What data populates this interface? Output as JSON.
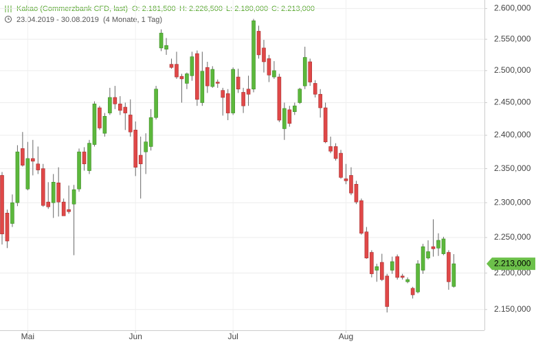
{
  "header": {
    "name": "Kakao (Commerzbank CFD, last)",
    "open": "O: 2.181,500",
    "high": "H: 2.226,500",
    "low": "L: 2.180,000",
    "close": "C: 2.213,000",
    "range": "23.04.2019 - 30.08.2019",
    "span": "(4 Monate, 1 Tag)"
  },
  "chart_data": {
    "type": "candlestick",
    "log": true,
    "grid": true,
    "up_color": "#5cb83c",
    "down_color": "#e04848",
    "ylim": [
      2122000,
      2614000
    ],
    "yticks": [
      {
        "value": 2150000,
        "label": "2.150,000"
      },
      {
        "value": 2200000,
        "label": "2.200,000"
      },
      {
        "value": 2250000,
        "label": "2.250,000"
      },
      {
        "value": 2300000,
        "label": "2.300,000"
      },
      {
        "value": 2350000,
        "label": "2.350,000"
      },
      {
        "value": 2400000,
        "label": "2.400,000"
      },
      {
        "value": 2450000,
        "label": "2.450,000"
      },
      {
        "value": 2500000,
        "label": "2.500,000"
      },
      {
        "value": 2550000,
        "label": "2.550,000"
      },
      {
        "value": 2600000,
        "label": "2.600,000"
      }
    ],
    "last": {
      "value": 2213000,
      "label": "2.213,000"
    },
    "categories": [
      null,
      null,
      null,
      null,
      null,
      "Mai",
      null,
      null,
      null,
      null,
      null,
      null,
      null,
      null,
      null,
      null,
      null,
      null,
      null,
      null,
      null,
      null,
      null,
      null,
      null,
      null,
      "Jun",
      null,
      null,
      null,
      null,
      null,
      null,
      null,
      null,
      null,
      null,
      null,
      null,
      null,
      null,
      null,
      null,
      null,
      null,
      "Jul",
      null,
      null,
      null,
      null,
      null,
      null,
      null,
      null,
      null,
      null,
      null,
      null,
      null,
      null,
      null,
      null,
      null,
      null,
      null,
      null,
      null,
      "Aug",
      null,
      null,
      null,
      null,
      null,
      null,
      null,
      null,
      null,
      null,
      null,
      null,
      null,
      null,
      null,
      null,
      null,
      null,
      null,
      null,
      null
    ],
    "open": [
      2340000,
      2285000,
      2270000,
      2300000,
      2380000,
      2320000,
      2365000,
      2357000,
      2350000,
      2301000,
      2300000,
      2329000,
      2301000,
      2290000,
      2298000,
      2320000,
      2375000,
      2347000,
      2386000,
      2442000,
      2403000,
      2434000,
      2458000,
      2448000,
      2443000,
      2431000,
      2408000,
      2370000,
      2375000,
      2383000,
      2427000,
      2536000,
      2534000,
      2510000,
      2510000,
      2491000,
      2480000,
      2492000,
      2527000,
      2450000,
      2505000,
      2475000,
      2482000,
      2469000,
      2464000,
      2434000,
      2490000,
      2466000,
      2471000,
      2471000,
      2563000,
      2536000,
      2519000,
      2490000,
      2490000,
      2410000,
      2439000,
      2436000,
      2450000,
      2476000,
      2514000,
      2480000,
      2463000,
      2442000,
      2383000,
      2383000,
      2373000,
      2335000,
      2340000,
      2327000,
      2303000,
      2258000,
      2229000,
      2204000,
      2215000,
      2196000,
      2204000,
      2223000,
      2196000,
      2188000,
      2179000,
      2174000,
      2204000,
      2221000,
      2237000,
      2235000,
      2227000,
      2229000,
      2181500
    ],
    "high": [
      2345000,
      2290000,
      2312000,
      2385000,
      2405000,
      2390000,
      2393000,
      2383000,
      2357000,
      2330000,
      2342000,
      2352000,
      2306000,
      2325000,
      2326000,
      2380000,
      2382000,
      2393000,
      2452000,
      2445000,
      2434000,
      2473000,
      2476000,
      2460000,
      2450000,
      2455000,
      2421000,
      2398000,
      2403000,
      2440000,
      2476000,
      2566000,
      2552000,
      2519000,
      2530000,
      2495000,
      2497000,
      2530000,
      2532000,
      2530000,
      2514000,
      2507000,
      2486000,
      2473000,
      2471000,
      2505000,
      2503000,
      2473000,
      2492000,
      2583000,
      2572000,
      2549000,
      2525000,
      2515000,
      2495000,
      2450000,
      2445000,
      2450000,
      2473000,
      2538000,
      2519000,
      2485000,
      2471000,
      2450000,
      2398000,
      2388000,
      2378000,
      2357000,
      2352000,
      2332000,
      2306000,
      2265000,
      2232000,
      2213000,
      2227000,
      2199000,
      2223000,
      2226000,
      2199000,
      2194000,
      2181000,
      2218000,
      2241000,
      2246000,
      2276000,
      2256000,
      2251000,
      2232000,
      2226500
    ],
    "low": [
      2240000,
      2235000,
      2265000,
      2295000,
      2353000,
      2318000,
      2340000,
      2342000,
      2294000,
      2291000,
      2278000,
      2280000,
      2281000,
      2284000,
      2225000,
      2316000,
      2347000,
      2342000,
      2383000,
      2408000,
      2398000,
      2431000,
      2440000,
      2431000,
      2408000,
      2398000,
      2339000,
      2306000,
      2342000,
      2377000,
      2424000,
      2531000,
      2525000,
      2503000,
      2487000,
      2450000,
      2471000,
      2484000,
      2445000,
      2445000,
      2465000,
      2473000,
      2473000,
      2430000,
      2423000,
      2431000,
      2465000,
      2434000,
      2445000,
      2466000,
      2519000,
      2497000,
      2482000,
      2487000,
      2420000,
      2393000,
      2413000,
      2431000,
      2448000,
      2471000,
      2476000,
      2458000,
      2427000,
      2388000,
      2373000,
      2362000,
      2335000,
      2327000,
      2311000,
      2298000,
      2254000,
      2220000,
      2194000,
      2188000,
      2189000,
      2146000,
      2199000,
      2191000,
      2191000,
      2186000,
      2165000,
      2172000,
      2199000,
      2219000,
      2223000,
      2224000,
      2225000,
      2177000,
      2180000
    ],
    "close": [
      2255000,
      2245000,
      2300000,
      2375000,
      2355000,
      2365000,
      2361000,
      2348000,
      2296000,
      2294000,
      2330000,
      2301000,
      2281000,
      2287000,
      2319000,
      2375000,
      2357000,
      2388000,
      2448000,
      2411000,
      2429000,
      2458000,
      2448000,
      2438000,
      2434000,
      2405000,
      2352000,
      2357000,
      2390000,
      2427000,
      2471000,
      2560000,
      2540000,
      2505000,
      2490000,
      2487000,
      2495000,
      2522000,
      2455000,
      2499000,
      2476000,
      2502000,
      2480000,
      2458000,
      2434000,
      2502000,
      2471000,
      2445000,
      2463000,
      2580000,
      2525000,
      2514000,
      2493000,
      2500000,
      2423000,
      2441000,
      2418000,
      2445000,
      2471000,
      2521000,
      2482000,
      2463000,
      2442000,
      2390000,
      2376000,
      2365000,
      2337000,
      2332000,
      2314000,
      2301000,
      2256000,
      2221000,
      2199000,
      2209000,
      2191000,
      2154000,
      2216000,
      2194000,
      2194000,
      2191000,
      2170000,
      2213000,
      2237000,
      2230000,
      2234000,
      2246000,
      2248000,
      2188000,
      2213000
    ]
  }
}
